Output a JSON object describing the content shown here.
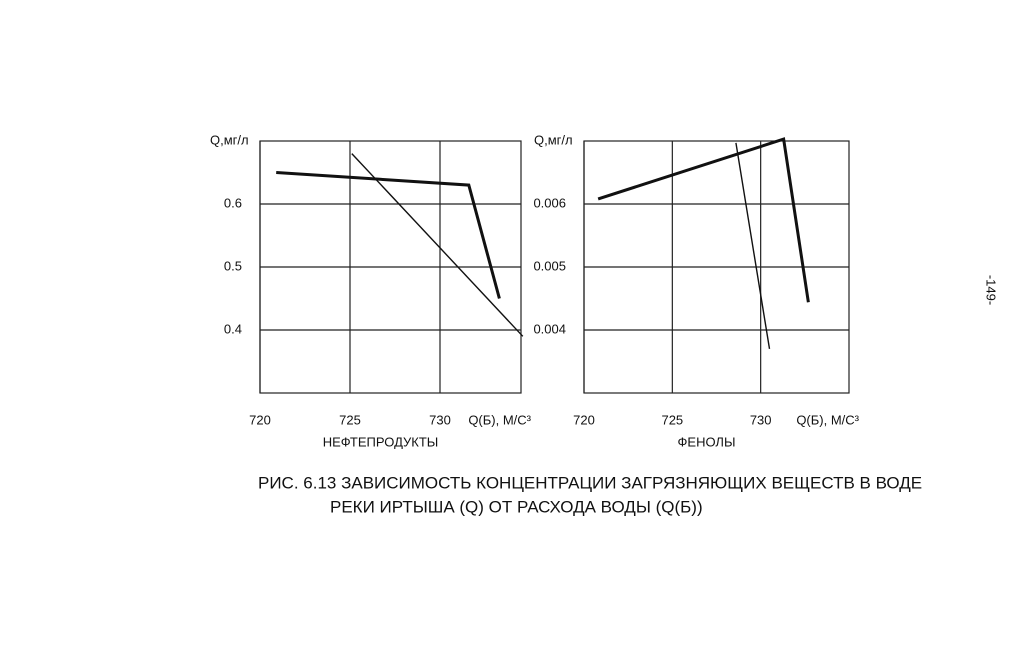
{
  "chart_data": [
    {
      "type": "line",
      "title": "НЕФТЕПРОДУКТЫ",
      "y_label": "Q,мг/л",
      "x_label": "Q(Б), М/С³",
      "xlim": [
        720,
        734.5
      ],
      "xticks": [
        720,
        725,
        730
      ],
      "ylim": [
        0.3,
        0.7
      ],
      "yticks": [
        0.6,
        0.5,
        0.4
      ],
      "grid": true,
      "series": [
        {
          "color": "#111111",
          "line_width": 3,
          "x": [
            720.9,
            731.6,
            733.3
          ],
          "values": [
            0.65,
            0.63,
            0.45
          ]
        },
        {
          "color": "#111111",
          "line_width": 1.4,
          "x": [
            725.1,
            734.6
          ],
          "values": [
            0.68,
            0.39
          ]
        }
      ]
    },
    {
      "type": "line",
      "title": "ФЕНОЛЫ",
      "y_label": "Q,мг/л",
      "x_label": "Q(Б), М/С³",
      "xlim": [
        720,
        735
      ],
      "xticks": [
        720,
        725,
        730
      ],
      "ylim": [
        0.003,
        0.007
      ],
      "yticks": [
        0.006,
        0.005,
        0.004
      ],
      "grid": true,
      "series": [
        {
          "color": "#111111",
          "line_width": 3,
          "x": [
            720.8,
            731.3,
            732.7
          ],
          "values": [
            0.00608,
            0.00703,
            0.00444
          ]
        },
        {
          "color": "#111111",
          "line_width": 1.4,
          "x": [
            728.6,
            730.5
          ],
          "values": [
            0.00697,
            0.0037
          ]
        }
      ]
    }
  ],
  "caption": [
    "РИС. 6.13 ЗАВИСИМОСТЬ КОНЦЕНТРАЦИИ ЗАГРЯЗНЯЮЩИХ ВЕЩЕСТВ В ВОДЕ",
    "РЕКИ ИРТЫША (Q) ОТ РАСХОДА ВОДЫ (Q(Б))"
  ],
  "page_number": "-149-"
}
